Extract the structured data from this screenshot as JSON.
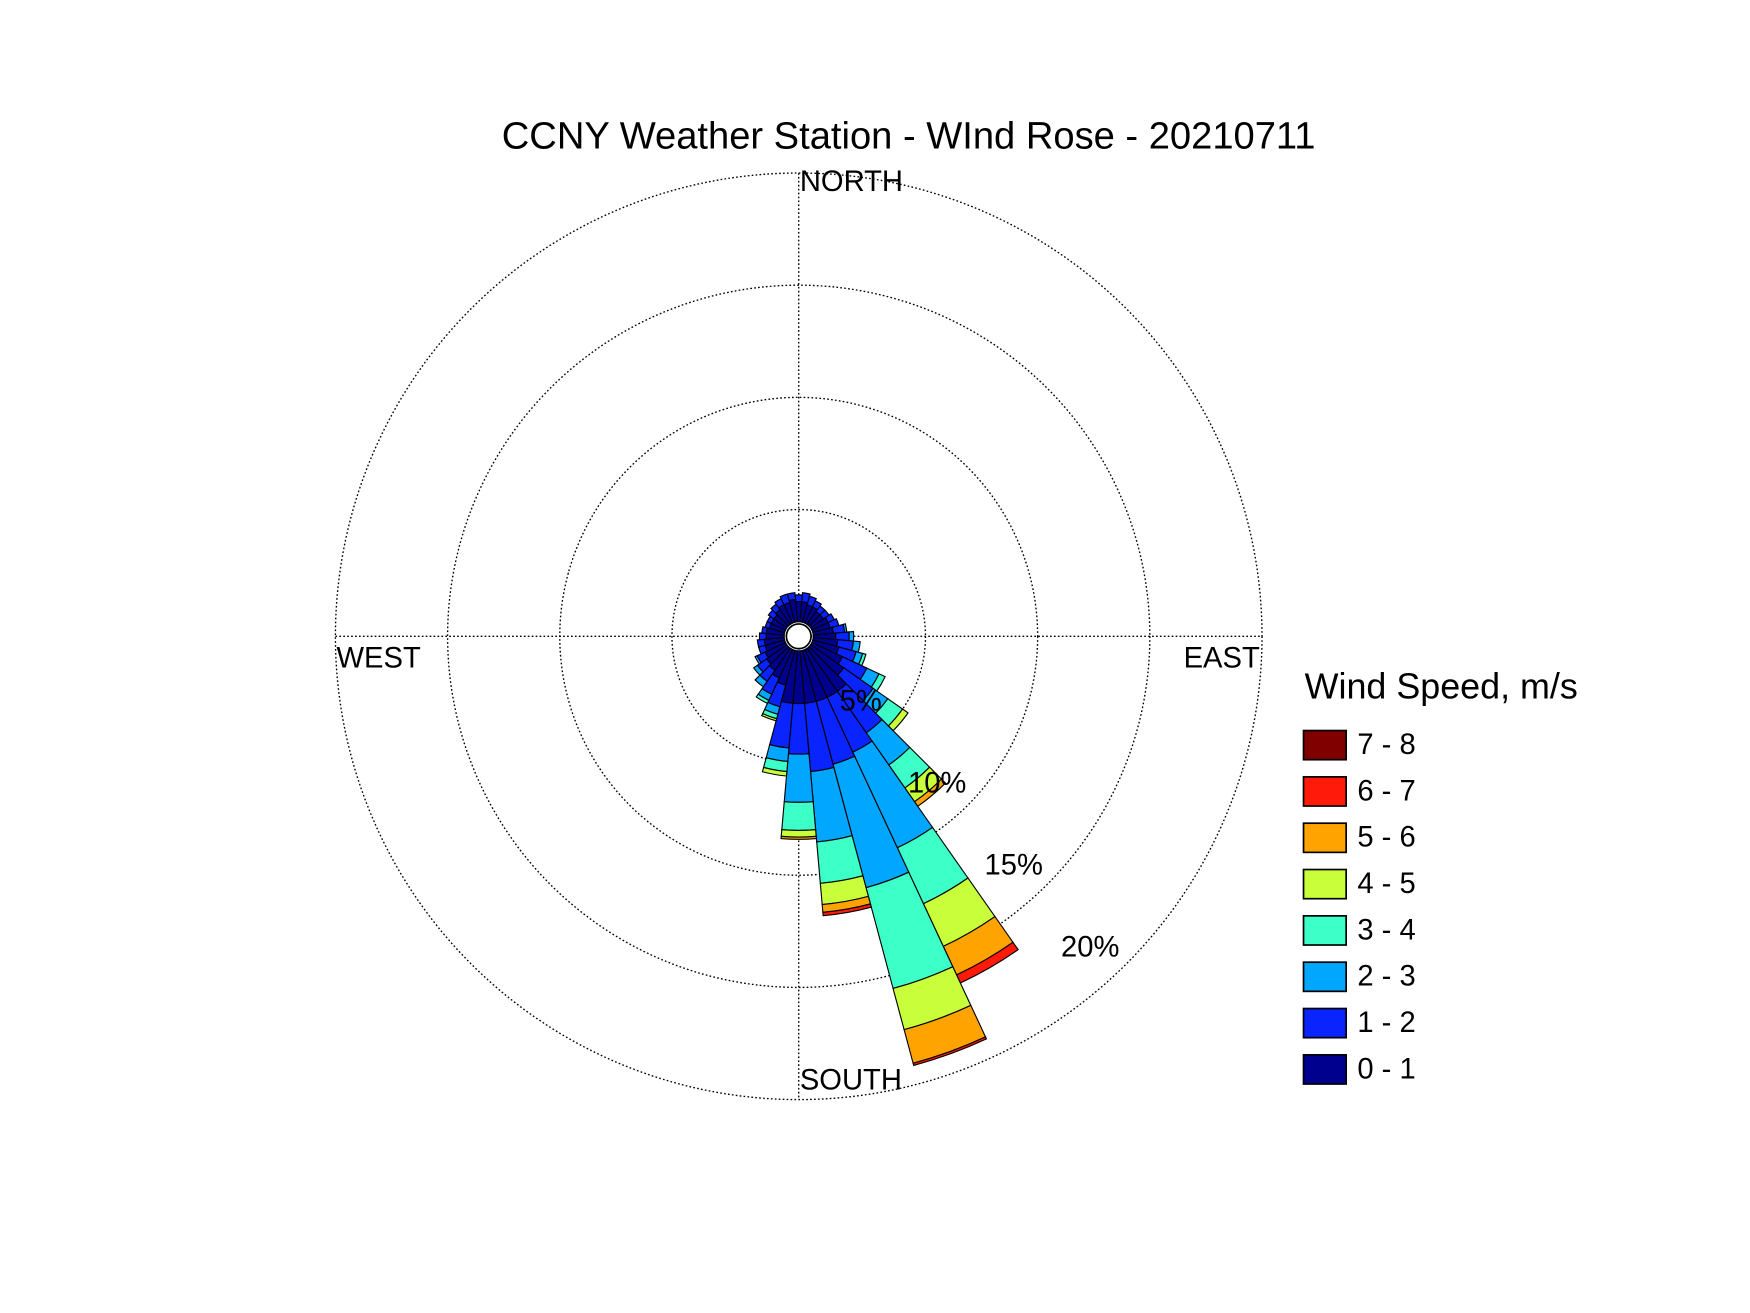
{
  "chart_data": {
    "type": "windrose",
    "title": "CCNY Weather Station - WInd Rose - 20210711",
    "compass_labels": [
      "NORTH",
      "EAST",
      "SOUTH",
      "WEST"
    ],
    "legend_title": "Wind Speed, m/s",
    "directions": [
      0,
      10,
      20,
      30,
      40,
      50,
      60,
      70,
      80,
      90,
      100,
      110,
      120,
      130,
      140,
      150,
      160,
      170,
      180,
      190,
      200,
      210,
      220,
      230,
      240,
      250,
      260,
      270,
      280,
      290,
      300,
      310,
      320,
      330,
      340,
      350
    ],
    "rlim": [
      0,
      20
    ],
    "rticks": [
      {
        "value": 5,
        "label": "5%"
      },
      {
        "value": 10,
        "label": "10%"
      },
      {
        "value": 15,
        "label": "15%"
      },
      {
        "value": 20,
        "label": "20%"
      }
    ],
    "series": [
      {
        "name": "0 - 1",
        "color": "#00008f",
        "values": [
          0.9,
          0.9,
          0.8,
          0.8,
          0.7,
          0.7,
          0.8,
          0.8,
          0.9,
          1.0,
          1.1,
          1.2,
          1.5,
          1.8,
          2.35,
          2.35,
          2.35,
          2.35,
          2.35,
          2.35,
          1.6,
          1.4,
          1.2,
          1.1,
          1.0,
          0.9,
          0.9,
          0.8,
          0.8,
          0.7,
          0.7,
          0.7,
          0.8,
          0.9,
          0.9,
          1.0
        ]
      },
      {
        "name": "1 - 2",
        "color": "#0a24ff",
        "values": [
          0.3,
          0.4,
          0.4,
          0.3,
          0.3,
          0.3,
          0.3,
          0.4,
          0.5,
          0.6,
          0.7,
          0.8,
          1.2,
          1.6,
          2.25,
          2.7,
          2.9,
          3.05,
          2.25,
          2.0,
          1.0,
          0.8,
          0.6,
          0.5,
          0.4,
          0.3,
          0.3,
          0.3,
          0.2,
          0.2,
          0.2,
          0.3,
          0.3,
          0.3,
          0.4,
          0.3
        ]
      },
      {
        "name": "2 - 3",
        "color": "#00a6ff",
        "values": [
          0,
          0,
          0,
          0,
          0,
          0,
          0,
          0,
          0.1,
          0.2,
          0.3,
          0.3,
          0.6,
          0.8,
          1.75,
          4.7,
          5.7,
          3.15,
          2.15,
          0.6,
          0.35,
          0.3,
          0.3,
          0.2,
          0.1,
          0,
          0,
          0,
          0,
          0,
          0,
          0,
          0,
          0,
          0,
          0
        ]
      },
      {
        "name": "3 - 4",
        "color": "#3dffc8",
        "values": [
          0,
          0,
          0,
          0,
          0,
          0,
          0,
          0,
          0,
          0,
          0,
          0.15,
          0.3,
          0.8,
          1.25,
          2.75,
          4.65,
          1.85,
          1.25,
          0.45,
          0.2,
          0.15,
          0,
          0,
          0,
          0,
          0,
          0,
          0,
          0,
          0,
          0,
          0,
          0,
          0,
          0
        ]
      },
      {
        "name": "4 - 5",
        "color": "#c8ff3a",
        "values": [
          0,
          0,
          0,
          0,
          0,
          0,
          0,
          0,
          0,
          0,
          0,
          0,
          0,
          0.3,
          0.75,
          2.1,
          1.9,
          0.95,
          0.3,
          0.2,
          0.1,
          0,
          0,
          0,
          0,
          0,
          0,
          0,
          0,
          0,
          0,
          0,
          0,
          0,
          0,
          0
        ]
      },
      {
        "name": "5 - 6",
        "color": "#ffa300",
        "values": [
          0,
          0,
          0,
          0,
          0,
          0,
          0,
          0,
          0,
          0,
          0,
          0,
          0,
          0,
          0.25,
          1.4,
          1.55,
          0.35,
          0.1,
          0,
          0,
          0,
          0,
          0,
          0,
          0,
          0,
          0,
          0,
          0,
          0,
          0,
          0,
          0,
          0,
          0
        ]
      },
      {
        "name": "6 - 7",
        "color": "#ff1a0a",
        "values": [
          0,
          0,
          0,
          0,
          0,
          0,
          0,
          0,
          0,
          0,
          0,
          0,
          0,
          0,
          0,
          0.4,
          0.1,
          0.15,
          0,
          0,
          0,
          0,
          0,
          0,
          0,
          0,
          0,
          0,
          0,
          0,
          0,
          0,
          0,
          0,
          0,
          0
        ]
      },
      {
        "name": "7 - 8",
        "color": "#800000",
        "values": [
          0,
          0,
          0,
          0,
          0,
          0,
          0,
          0,
          0,
          0,
          0,
          0,
          0,
          0,
          0,
          0,
          0,
          0,
          0,
          0,
          0,
          0,
          0,
          0,
          0,
          0,
          0,
          0,
          0,
          0,
          0,
          0,
          0,
          0,
          0,
          0
        ]
      }
    ]
  }
}
